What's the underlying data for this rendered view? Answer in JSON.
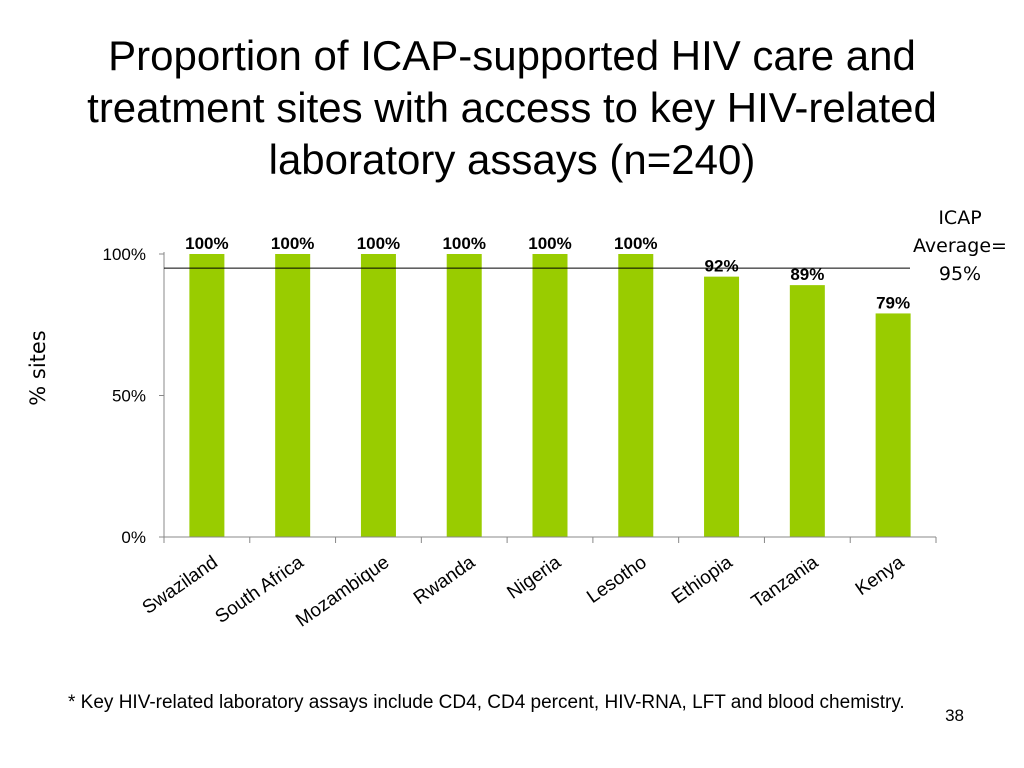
{
  "slide": {
    "title_lines": [
      "Proportion of ICAP-supported HIV care and",
      "treatment sites with access to key HIV-related",
      "laboratory assays (n=240)"
    ],
    "footnote": "* Key HIV-related laboratory assays include CD4, CD4 percent, HIV-RNA, LFT and blood chemistry.",
    "page_number": "38"
  },
  "chart_data": {
    "type": "bar",
    "categories": [
      "Swaziland",
      "South Africa",
      "Mozambique",
      "Rwanda",
      "Nigeria",
      "Lesotho",
      "Ethiopia",
      "Tanzania",
      "Kenya"
    ],
    "values": [
      100,
      100,
      100,
      100,
      100,
      100,
      92,
      89,
      79
    ],
    "data_labels": [
      "100%",
      "100%",
      "100%",
      "100%",
      "100%",
      "100%",
      "92%",
      "89%",
      "79%"
    ],
    "ylabel": "% sites",
    "ylim": [
      0,
      100
    ],
    "y_ticks": [
      0,
      50,
      100
    ],
    "y_tick_labels": [
      "0%",
      "50%",
      "100%"
    ],
    "reference_line": {
      "value": 95,
      "label_lines": [
        "ICAP",
        "Average=",
        "95%"
      ]
    },
    "bar_color": "#99cc00",
    "grid": false
  }
}
